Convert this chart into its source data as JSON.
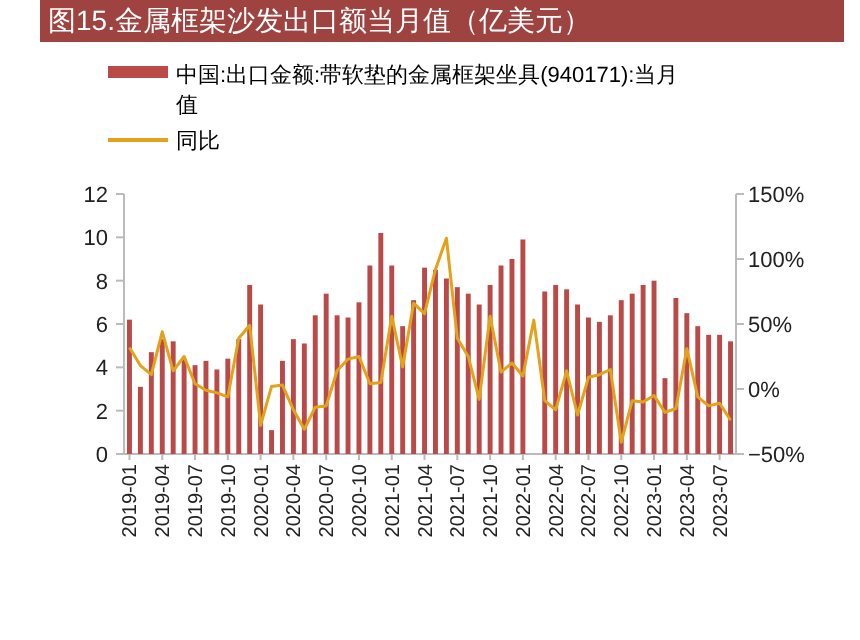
{
  "chart_data": {
    "type": "bar",
    "title": "图15.金属框架沙发出口额当月值（亿美元）",
    "categories": [
      "2019-01",
      null,
      null,
      "2019-04",
      null,
      null,
      "2019-07",
      null,
      null,
      "2019-10",
      null,
      null,
      "2020-01",
      null,
      null,
      "2020-04",
      null,
      null,
      "2020-07",
      null,
      null,
      "2020-10",
      null,
      null,
      "2021-01",
      null,
      null,
      "2021-04",
      null,
      null,
      "2021-07",
      null,
      null,
      "2021-10",
      null,
      null,
      "2022-01",
      null,
      null,
      "2022-04",
      null,
      null,
      "2022-07",
      null,
      null,
      "2022-10",
      null,
      null,
      "2023-01",
      null,
      null,
      "2023-04",
      null,
      null,
      "2023-07",
      null
    ],
    "series": [
      {
        "name": "中国:出口金额:带软垫的金属框架坐具(940171):当月值",
        "color": "#b94a48",
        "values": [
          6.2,
          3.1,
          4.7,
          5.3,
          5.2,
          4.4,
          4.1,
          4.3,
          3.9,
          4.4,
          5.3,
          7.8,
          6.9,
          1.1,
          4.3,
          5.3,
          5.1,
          6.4,
          7.4,
          6.4,
          6.3,
          7.0,
          8.7,
          10.2,
          8.7,
          5.9,
          7.1,
          8.6,
          8.5,
          8.1,
          7.7,
          7.4,
          6.9,
          7.8,
          8.7,
          9.0,
          9.9,
          null,
          7.5,
          7.8,
          7.6,
          6.9,
          6.3,
          6.1,
          6.4,
          7.1,
          7.4,
          7.8,
          8.0,
          3.5,
          7.2,
          6.5,
          5.9,
          5.5,
          5.5,
          5.2
        ]
      },
      {
        "name": "同比",
        "type": "line",
        "axis": "y2",
        "color": "#e3a21a",
        "values": [
          32,
          18,
          11,
          44,
          14,
          25,
          4,
          -1,
          -3,
          -6,
          39,
          49,
          -28,
          2,
          3,
          -16,
          -31,
          -14,
          -13,
          14,
          23,
          25,
          4,
          5,
          56,
          17,
          66,
          58,
          92,
          116,
          39,
          25,
          -8,
          56,
          13,
          20,
          10,
          53,
          -9,
          -16,
          14,
          -20,
          9,
          11,
          15,
          -41,
          -9,
          -10,
          -5,
          -18,
          -15,
          31,
          -6,
          -13,
          -11,
          -24
        ]
      }
    ],
    "ylim": [
      0,
      12
    ],
    "yticks": [
      0,
      2,
      4,
      6,
      8,
      10,
      12
    ],
    "y2lim": [
      -50,
      150
    ],
    "y2ticks": [
      {
        "value": -50,
        "label": "−50%"
      },
      {
        "value": 0,
        "label": "0%"
      },
      {
        "value": 50,
        "label": "50%"
      },
      {
        "value": 100,
        "label": "100%"
      },
      {
        "value": 150,
        "label": "150%"
      }
    ],
    "legend": "top",
    "grid": false
  }
}
